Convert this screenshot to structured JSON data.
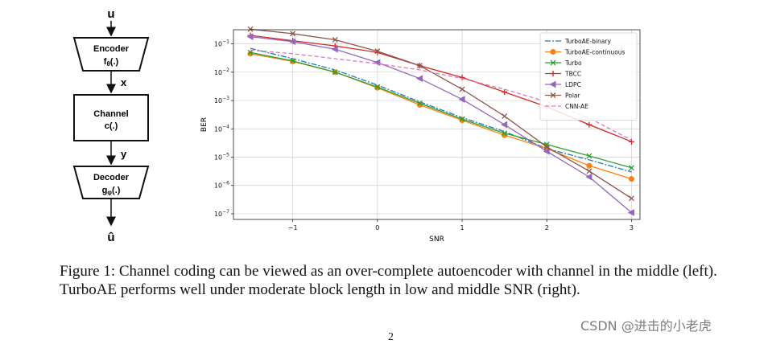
{
  "diagram": {
    "input_label": "u",
    "encoder_title": "Encoder",
    "encoder_fn_base": "f",
    "encoder_fn_sub": "θ",
    "encoder_fn_tail": "(.)",
    "x_label": "x",
    "channel_title": "Channel",
    "channel_fn": "c(.)",
    "y_label": "y",
    "decoder_title": "Decoder",
    "decoder_fn_base": "g",
    "decoder_fn_sub": "φ",
    "decoder_fn_tail": "(.)",
    "output_label": "û"
  },
  "chart_data": {
    "type": "line",
    "xlabel": "SNR",
    "ylabel": "BER",
    "xlim": [
      -1.7,
      3.1
    ],
    "ylim_log10": [
      -7.2,
      -0.5
    ],
    "yscale": "log",
    "grid": true,
    "legend_position": "top-right",
    "x_ticks": [
      -1,
      0,
      1,
      2,
      3
    ],
    "x_tick_labels": [
      "−1",
      "0",
      "1",
      "2",
      "3"
    ],
    "y_ticks_exp": [
      -1,
      -2,
      -3,
      -4,
      -5,
      -6,
      -7
    ],
    "x": [
      -1.5,
      -1,
      -0.5,
      0,
      0.5,
      1,
      1.5,
      2,
      2.5,
      3
    ],
    "series": [
      {
        "name": "TurboAE-binary",
        "color": "#1f77b4",
        "dash": "7 2 2 2",
        "marker": "none",
        "values": [
          0.07,
          0.03,
          0.012,
          0.0035,
          0.0009,
          0.00025,
          8e-05,
          2e-05,
          8e-06,
          3e-06
        ]
      },
      {
        "name": "TurboAE-continuous",
        "color": "#ff7f0e",
        "dash": "",
        "marker": "circle",
        "values": [
          0.045,
          0.024,
          0.01,
          0.0028,
          0.0007,
          0.0002,
          6e-05,
          2e-05,
          5e-06,
          1.7e-06
        ]
      },
      {
        "name": "Turbo",
        "color": "#2ca02c",
        "dash": "",
        "marker": "x",
        "values": [
          0.05,
          0.025,
          0.01,
          0.003,
          0.0008,
          0.00022,
          7e-05,
          2.8e-05,
          1.1e-05,
          4.2e-06
        ]
      },
      {
        "name": "TBCC",
        "color": "#d62728",
        "dash": "",
        "marker": "plus",
        "values": [
          0.2,
          0.13,
          0.085,
          0.05,
          0.017,
          0.0065,
          0.002,
          0.0006,
          0.00014,
          3.5e-05
        ]
      },
      {
        "name": "LDPC",
        "color": "#9467bd",
        "dash": "",
        "marker": "triangle",
        "values": [
          0.18,
          0.12,
          0.065,
          0.022,
          0.006,
          0.0011,
          0.00014,
          1.6e-05,
          2e-06,
          1.1e-07
        ]
      },
      {
        "name": "Polar",
        "color": "#8c564b",
        "dash": "",
        "marker": "x",
        "values": [
          0.33,
          0.23,
          0.14,
          0.055,
          0.017,
          0.0025,
          0.00028,
          2.3e-05,
          3.2e-06,
          3.5e-07
        ]
      },
      {
        "name": "CNN-AE",
        "color": "#e377c2",
        "dash": "5 3",
        "marker": "none",
        "values": [
          0.06,
          0.045,
          0.03,
          0.02,
          0.012,
          0.006,
          0.0025,
          0.0009,
          0.00024,
          4e-05
        ]
      }
    ]
  },
  "caption": "Figure 1: Channel coding can be viewed as an over-complete autoencoder with channel in the middle (left). TurboAE performs well under moderate block length in low and middle SNR (right).",
  "watermark": "CSDN @进击的小老虎",
  "page_number": "2"
}
